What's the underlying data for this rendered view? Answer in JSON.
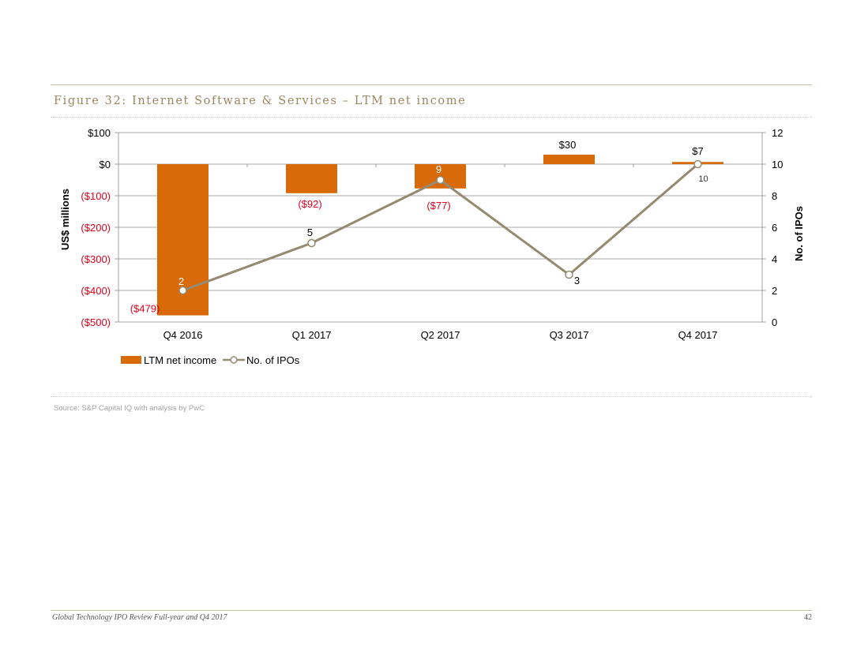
{
  "figure_title": "Figure 32: Internet Software & Services – LTM net income",
  "source": "Source: S&P Capital IQ with analysis by PwC",
  "footer": {
    "left": "Global Technology IPO Review Full-year and Q4 2017",
    "page": "42"
  },
  "colors": {
    "bar": "#d86a0a",
    "line": "#958a70",
    "negative_label": "#e3001b",
    "rule": "#c9bfa6",
    "title": "#9c8660"
  },
  "chart_data": {
    "type": "bar+line",
    "title": "Figure 32: Internet Software & Services – LTM net income",
    "categories": [
      "Q4 2016",
      "Q1 2017",
      "Q2 2017",
      "Q3 2017",
      "Q4 2017"
    ],
    "ylabel": "US$ millions",
    "y2label": "No. of IPOs",
    "ylim": [
      -500,
      100
    ],
    "y2lim": [
      0,
      12
    ],
    "yticks": [
      100,
      0,
      -100,
      -200,
      -300,
      -400,
      -500
    ],
    "ytick_labels": [
      "$100",
      "$0",
      "($100)",
      "($200)",
      "($300)",
      "($400)",
      "($500)"
    ],
    "y2ticks": [
      12,
      10,
      8,
      6,
      4,
      2,
      0
    ],
    "y2tick_labels": [
      "12",
      "10",
      "8",
      "6",
      "4",
      "2",
      "0"
    ],
    "series": [
      {
        "name": "LTM net income",
        "kind": "bar",
        "axis": "left",
        "values": [
          -479,
          -92,
          -77,
          30,
          7
        ],
        "labels": [
          "($479)",
          "($92)",
          "($77)",
          "$30",
          "$7"
        ]
      },
      {
        "name": "No. of IPOs",
        "kind": "line",
        "axis": "right",
        "values": [
          2,
          5,
          9,
          3,
          10
        ],
        "labels": [
          "2",
          "5",
          "9",
          "3",
          "10"
        ]
      }
    ],
    "legend": [
      "LTM net income",
      "No. of IPOs"
    ],
    "grid": true,
    "legend_position": "bottom-left"
  }
}
